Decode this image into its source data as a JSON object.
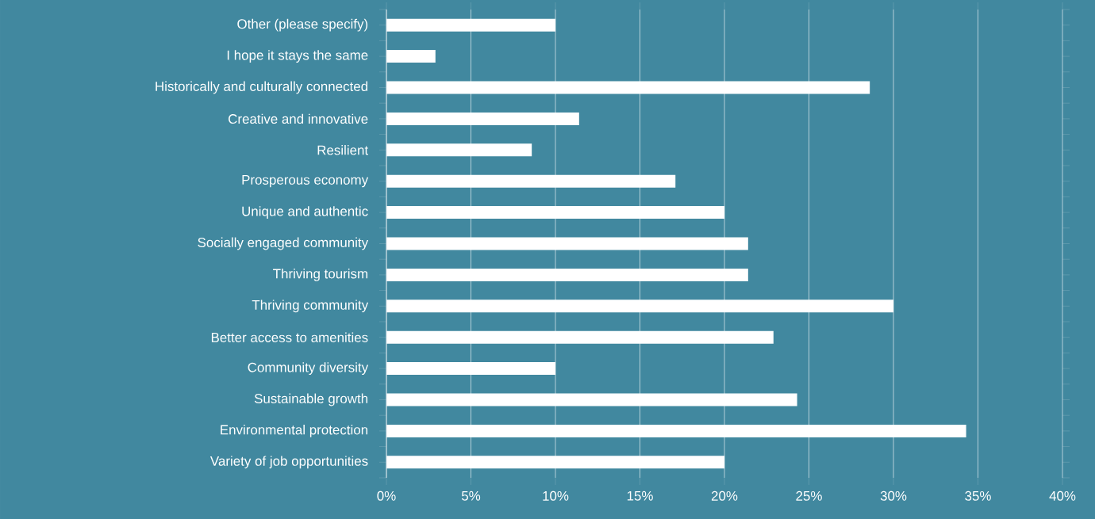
{
  "chart_data": {
    "type": "bar",
    "orientation": "horizontal",
    "categories": [
      "Other (please specify)",
      "I hope it stays the same",
      "Historically and culturally connected",
      "Creative and innovative",
      "Resilient",
      "Prosperous economy",
      "Unique and authentic",
      "Socially engaged community",
      "Thriving tourism",
      "Thriving community",
      "Better access to amenities",
      "Community diversity",
      "Sustainable growth",
      "Environmental protection",
      "Variety of job opportunities"
    ],
    "values": [
      10,
      2.9,
      28.6,
      11.4,
      8.6,
      17.1,
      20,
      21.4,
      21.4,
      30,
      22.9,
      10,
      24.3,
      34.3,
      20
    ],
    "color": "#ffffff",
    "xlim": [
      0,
      40
    ],
    "xticks": [
      {
        "value": 0,
        "label": "0%"
      },
      {
        "value": 5,
        "label": "5%"
      },
      {
        "value": 10,
        "label": "10%"
      },
      {
        "value": 15,
        "label": "15%"
      },
      {
        "value": 20,
        "label": "20%"
      },
      {
        "value": 25,
        "label": "25%"
      },
      {
        "value": 30,
        "label": "30%"
      },
      {
        "value": 35,
        "label": "35%"
      },
      {
        "value": 40,
        "label": "40%"
      }
    ],
    "grid": "x"
  }
}
